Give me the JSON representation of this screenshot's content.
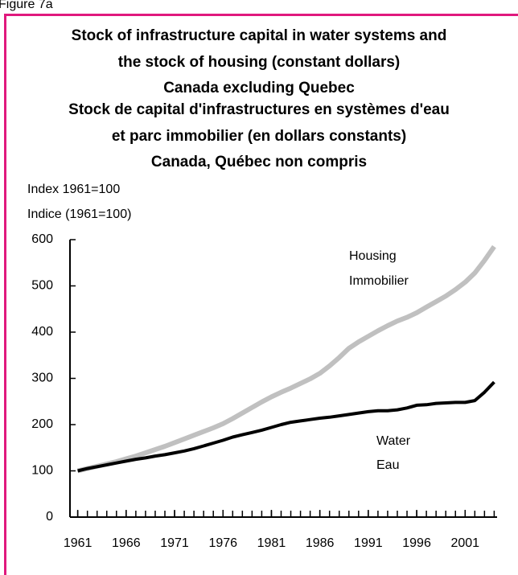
{
  "figure_label": "Figure 7a",
  "chart_data": {
    "type": "line",
    "title": [
      "Stock of infrastructure capital in water systems and",
      "the stock of housing (constant dollars)",
      "Canada excluding Quebec",
      "Stock de capital d'infrastructures en systèmes d'eau",
      "et parc immobilier (en dollars constants)",
      "Canada, Québec non compris"
    ],
    "y_label": [
      "Index 1961=100",
      "Indice (1961=100)"
    ],
    "x": [
      1961,
      1962,
      1963,
      1964,
      1965,
      1966,
      1967,
      1968,
      1969,
      1970,
      1971,
      1972,
      1973,
      1974,
      1975,
      1976,
      1977,
      1978,
      1979,
      1980,
      1981,
      1982,
      1983,
      1984,
      1985,
      1986,
      1987,
      1988,
      1989,
      1990,
      1991,
      1992,
      1993,
      1994,
      1995,
      1996,
      1997,
      1998,
      1999,
      2000,
      2001,
      2002,
      2003,
      2004
    ],
    "series": [
      {
        "name": [
          "Housing",
          "Immobilier"
        ],
        "color": "#c0c0c0",
        "values": [
          100,
          105,
          110,
          115,
          120,
          126,
          132,
          139,
          146,
          153,
          161,
          169,
          177,
          185,
          193,
          202,
          213,
          225,
          237,
          249,
          260,
          270,
          279,
          289,
          299,
          311,
          327,
          345,
          365,
          379,
          391,
          403,
          414,
          424,
          432,
          442,
          454,
          466,
          478,
          492,
          508,
          528,
          555,
          585
        ]
      },
      {
        "name": [
          "Water",
          "Eau"
        ],
        "color": "#000000",
        "values": [
          100,
          105,
          109,
          113,
          117,
          121,
          125,
          128,
          132,
          135,
          139,
          143,
          148,
          154,
          160,
          166,
          173,
          178,
          183,
          188,
          194,
          200,
          205,
          208,
          211,
          214,
          216,
          219,
          222,
          225,
          228,
          230,
          230,
          232,
          236,
          242,
          243,
          246,
          247,
          248,
          248,
          252,
          270,
          292
        ]
      }
    ],
    "xlim": [
      1960.2,
      2004.3
    ],
    "xticks": [
      1961,
      1966,
      1971,
      1976,
      1981,
      1986,
      1991,
      1996,
      2001
    ],
    "ylim": [
      0,
      600
    ],
    "yticks": [
      0,
      100,
      200,
      300,
      400,
      500,
      600
    ]
  }
}
